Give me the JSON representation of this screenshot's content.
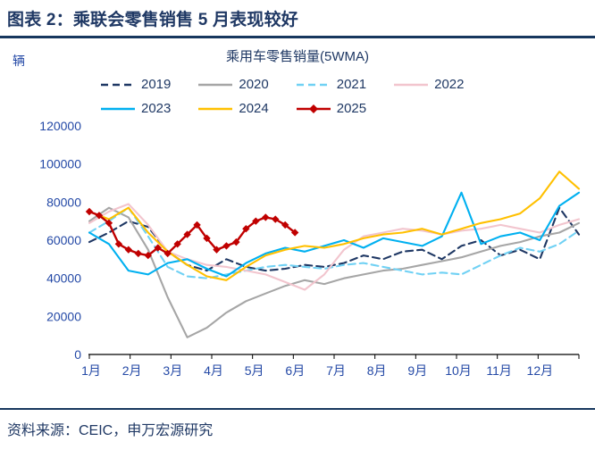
{
  "header": {
    "title": "图表 2：乘联会零售销售 5 月表现较好"
  },
  "footer": {
    "source": "资料来源：CEIC，申万宏源研究"
  },
  "colors": {
    "title_navy": "#1F3864",
    "axis_blue": "#2449A6",
    "rule_navy": "#17375E",
    "axis_line": "#000000"
  },
  "chart_data": {
    "type": "line",
    "title": "乘用车零售销量(5WMA)",
    "unit_label": "辆",
    "grid": false,
    "legend_position": "top",
    "x_labels": [
      "1月",
      "2月",
      "3月",
      "4月",
      "5月",
      "6月",
      "7月",
      "8月",
      "9月",
      "10月",
      "11月",
      "12月"
    ],
    "y_axis": {
      "min": 0,
      "max": 120000,
      "step": 20000,
      "tick_labels": [
        "0",
        "20000",
        "40000",
        "60000",
        "80000",
        "100000",
        "120000"
      ]
    },
    "series": [
      {
        "name": "2019",
        "color": "#1F3864",
        "dash": "8 5",
        "span": 1,
        "values": [
          59000,
          64000,
          70000,
          67000,
          54000,
          47000,
          44000,
          50000,
          46000,
          44000,
          45000,
          47000,
          46000,
          48000,
          52000,
          50000,
          54000,
          55000,
          50000,
          57000,
          60000,
          52000,
          55000,
          50000,
          77000,
          63000
        ]
      },
      {
        "name": "2020",
        "color": "#A6A6A6",
        "span": 1,
        "values": [
          70000,
          77000,
          72000,
          55000,
          30000,
          9000,
          14000,
          22000,
          28000,
          32000,
          36000,
          39000,
          37000,
          40000,
          42000,
          44000,
          45000,
          47000,
          49000,
          51000,
          54000,
          57000,
          59000,
          62000,
          64000,
          69000
        ]
      },
      {
        "name": "2021",
        "color": "#70D1F4",
        "dash": "8 5",
        "span": 1,
        "values": [
          64000,
          70000,
          77000,
          62000,
          46000,
          41000,
          40000,
          42000,
          44000,
          46000,
          47000,
          46000,
          45000,
          47000,
          48000,
          46000,
          44000,
          42000,
          43000,
          42000,
          47000,
          52000,
          56000,
          54000,
          58000,
          65000
        ]
      },
      {
        "name": "2022",
        "color": "#F2C5CE",
        "span": 1,
        "values": [
          69000,
          75000,
          79000,
          68000,
          54000,
          50000,
          47000,
          46000,
          44000,
          42000,
          38000,
          34000,
          42000,
          55000,
          62000,
          64000,
          66000,
          65000,
          63000,
          65000,
          66000,
          68000,
          66000,
          64000,
          68000,
          71000
        ]
      },
      {
        "name": "2023",
        "color": "#00B0F0",
        "span": 1,
        "values": [
          64000,
          58000,
          44000,
          42000,
          48000,
          50000,
          45000,
          41000,
          48000,
          53000,
          56000,
          54000,
          57000,
          60000,
          56000,
          61000,
          59000,
          57000,
          62000,
          85000,
          58000,
          62000,
          64000,
          60000,
          78000,
          85000
        ]
      },
      {
        "name": "2024",
        "color": "#FFC000",
        "span": 1,
        "values": [
          75000,
          71000,
          77000,
          64000,
          54000,
          47000,
          41000,
          39000,
          46000,
          52000,
          55000,
          57000,
          56000,
          58000,
          61000,
          63000,
          64000,
          66000,
          63000,
          66000,
          69000,
          71000,
          74000,
          82000,
          96000,
          87000
        ]
      },
      {
        "name": "2025",
        "color": "#C00000",
        "marker": "diamond",
        "span": 0.42,
        "values": [
          75000,
          73000,
          69000,
          58000,
          55000,
          53000,
          52000,
          56000,
          53000,
          58000,
          63000,
          68000,
          61000,
          55000,
          57000,
          59000,
          66000,
          70000,
          72000,
          71000,
          68000,
          64000
        ]
      }
    ]
  }
}
